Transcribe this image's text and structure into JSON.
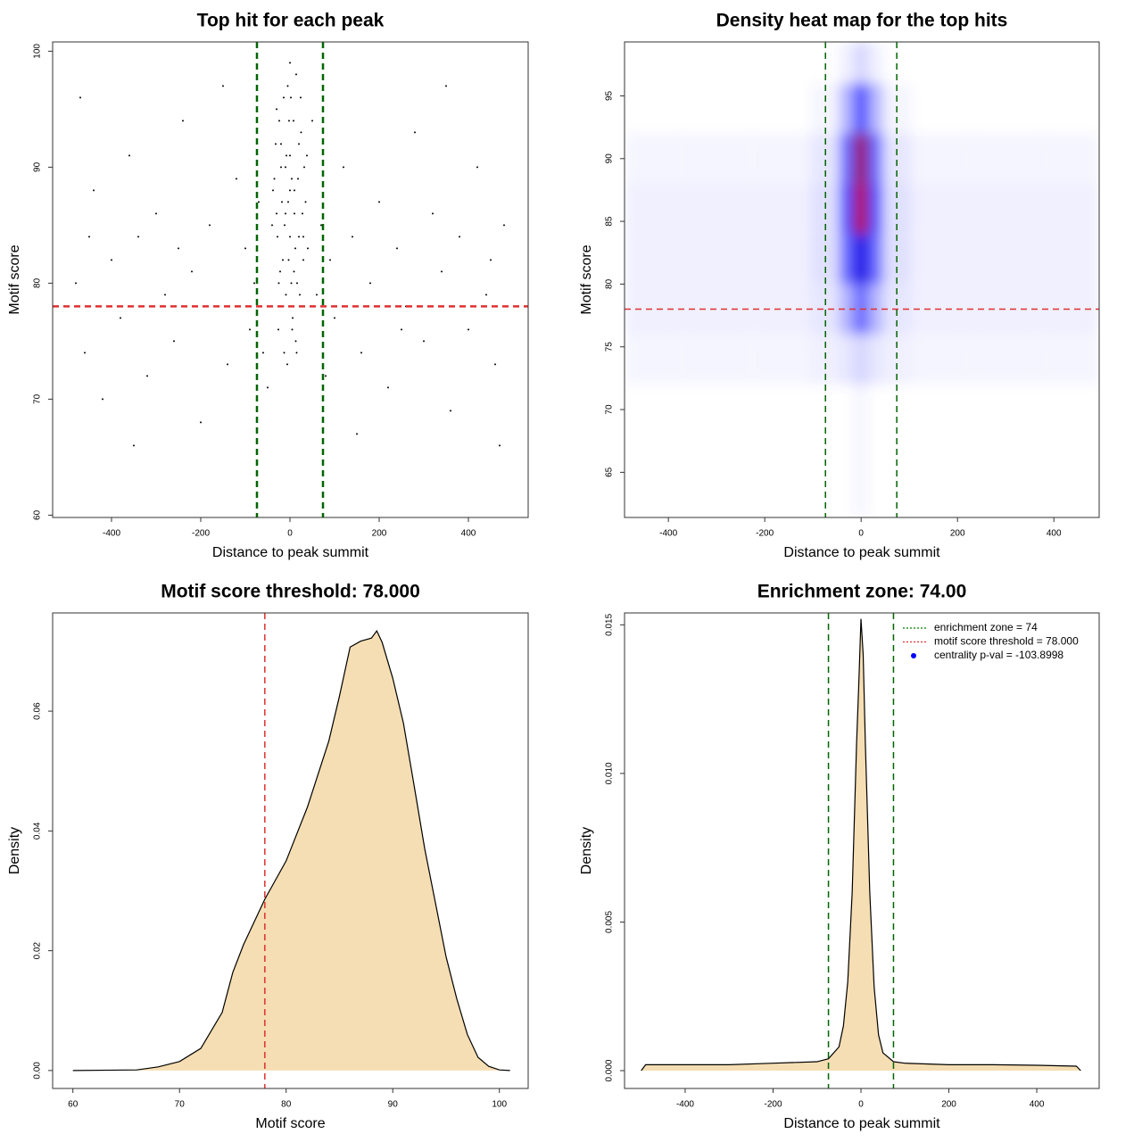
{
  "chart_data": [
    {
      "type": "scatter",
      "title": "Top hit for each peak",
      "xlabel": "Distance to peak summit",
      "ylabel": "Motif score",
      "xlim": [
        -532,
        534
      ],
      "ylim": [
        59.8,
        100.8
      ],
      "xticks": [
        -400,
        -200,
        0,
        200,
        400
      ],
      "yticks": [
        60,
        70,
        80,
        90,
        100
      ],
      "color": "#000000",
      "vlines": [
        {
          "value": -74,
          "color": "#006400"
        },
        {
          "value": 74,
          "color": "#006400"
        }
      ],
      "hlines": [
        {
          "value": 78,
          "color": "#e03030"
        }
      ],
      "x": [
        -30,
        -20,
        -10,
        0,
        10,
        20,
        30,
        -25,
        -15,
        5,
        15,
        -5,
        25,
        -35,
        35,
        0,
        -12,
        12,
        -22,
        22,
        -8,
        8,
        -18,
        18,
        -28,
        28,
        -3,
        3,
        -40,
        40,
        -6,
        6,
        -14,
        14,
        -32,
        32,
        0,
        -10,
        10,
        -20,
        20,
        -2,
        2,
        -26,
        26,
        -16,
        16,
        -38,
        38,
        -4,
        4,
        0,
        -9,
        9,
        -24,
        24,
        -13,
        13,
        -30,
        30,
        -480,
        -460,
        -440,
        -420,
        -400,
        -380,
        -360,
        -340,
        -320,
        -300,
        -280,
        -260,
        -240,
        -220,
        -200,
        -180,
        -160,
        -140,
        -120,
        -100,
        -90,
        -80,
        -70,
        -60,
        60,
        70,
        80,
        90,
        100,
        120,
        140,
        160,
        180,
        200,
        220,
        240,
        260,
        280,
        300,
        320,
        340,
        360,
        380,
        400,
        420,
        440,
        460,
        480,
        -470,
        470,
        -350,
        350,
        -150,
        150,
        -450,
        450,
        -250,
        250,
        -50,
        50
      ],
      "y": [
        95,
        92,
        90,
        88,
        86,
        84,
        82,
        80,
        78,
        76,
        74,
        97,
        93,
        89,
        87,
        99,
        85,
        83,
        81,
        79,
        91,
        94,
        87,
        89,
        84,
        86,
        82,
        80,
        85,
        83,
        73,
        77,
        96,
        98,
        92,
        90,
        84,
        86,
        88,
        90,
        92,
        94,
        96,
        76,
        78,
        82,
        80,
        88,
        91,
        87,
        89,
        91,
        79,
        81,
        94,
        96,
        74,
        75,
        86,
        84,
        80,
        74,
        88,
        70,
        82,
        77,
        91,
        84,
        72,
        86,
        79,
        75,
        94,
        81,
        68,
        85,
        78,
        73,
        89,
        83,
        76,
        80,
        87,
        74,
        79,
        85,
        72,
        82,
        77,
        90,
        84,
        74,
        80,
        87,
        71,
        83,
        78,
        93,
        75,
        86,
        81,
        69,
        84,
        76,
        90,
        79,
        73,
        85,
        96,
        66,
        66,
        97,
        97,
        67,
        84,
        82,
        83,
        76,
        71,
        94
      ]
    },
    {
      "type": "heatmap",
      "title": "Density heat map for the top hits",
      "xlabel": "Distance to peak summit",
      "ylabel": "Motif score",
      "xlim": [
        -491,
        494
      ],
      "ylim": [
        61.4,
        99.3
      ],
      "xticks": [
        -400,
        -200,
        0,
        200,
        400
      ],
      "yticks": [
        65,
        70,
        75,
        80,
        85,
        90,
        95
      ],
      "colors": [
        "#ffffff",
        "#0000ff",
        "#ff0000"
      ],
      "vlines": [
        {
          "value": -74,
          "color": "#006400"
        },
        {
          "value": 74,
          "color": "#006400"
        }
      ],
      "hlines": [
        {
          "value": 78,
          "color": "#e03030"
        }
      ],
      "x": [
        -450,
        -300,
        -150,
        -60,
        -30,
        0,
        30,
        60,
        150,
        300,
        450
      ],
      "y": [
        70,
        74,
        78,
        82,
        86,
        90,
        94,
        98
      ],
      "z": [
        [
          0,
          0,
          0,
          0,
          0,
          0.02,
          0,
          0,
          0,
          0,
          0
        ],
        [
          0.02,
          0.02,
          0.02,
          0.03,
          0.05,
          0.08,
          0.05,
          0.03,
          0.02,
          0.02,
          0.02
        ],
        [
          0.03,
          0.03,
          0.03,
          0.05,
          0.15,
          0.3,
          0.15,
          0.05,
          0.03,
          0.03,
          0.03
        ],
        [
          0.03,
          0.03,
          0.03,
          0.06,
          0.3,
          0.55,
          0.3,
          0.06,
          0.03,
          0.03,
          0.03
        ],
        [
          0.03,
          0.03,
          0.03,
          0.06,
          0.35,
          0.85,
          0.35,
          0.06,
          0.03,
          0.03,
          0.03
        ],
        [
          0.02,
          0.02,
          0.02,
          0.05,
          0.3,
          0.8,
          0.3,
          0.05,
          0.02,
          0.02,
          0.02
        ],
        [
          0,
          0,
          0,
          0.02,
          0.15,
          0.35,
          0.15,
          0.02,
          0,
          0,
          0
        ],
        [
          0,
          0,
          0,
          0,
          0.03,
          0.08,
          0.03,
          0,
          0,
          0,
          0
        ]
      ]
    },
    {
      "type": "area",
      "title": "Motif score threshold: 78.000",
      "xlabel": "Motif score",
      "ylabel": "Density",
      "xlim": [
        58.1,
        102.7
      ],
      "ylim": [
        -0.003,
        0.0764
      ],
      "xticks": [
        60,
        70,
        80,
        90,
        100
      ],
      "yticks": [
        {
          "value": 0,
          "label": "0.00"
        },
        {
          "value": 0.02,
          "label": "0.02"
        },
        {
          "value": 0.04,
          "label": "0.04"
        },
        {
          "value": 0.06,
          "label": "0.06"
        }
      ],
      "color": "#f5deb3",
      "vlines": [
        {
          "value": 78,
          "color": "#e03030"
        }
      ],
      "x": [
        60,
        66,
        68,
        70,
        72,
        74,
        75,
        76,
        78,
        80,
        82,
        84,
        85,
        86,
        87,
        88,
        88.5,
        89,
        90,
        91,
        92,
        93,
        94,
        95,
        96,
        97,
        98,
        99,
        100,
        101
      ],
      "values": [
        0,
        0.0001,
        0.0006,
        0.0015,
        0.0037,
        0.0097,
        0.0164,
        0.021,
        0.0286,
        0.035,
        0.044,
        0.055,
        0.0625,
        0.0707,
        0.0717,
        0.0722,
        0.0734,
        0.0715,
        0.0655,
        0.058,
        0.0476,
        0.037,
        0.028,
        0.019,
        0.012,
        0.006,
        0.0022,
        0.0007,
        0.0001,
        0
      ]
    },
    {
      "type": "area",
      "title": "Enrichment zone: 74.00",
      "xlabel": "Distance to peak summit",
      "ylabel": "Density",
      "xlim": [
        -538,
        542
      ],
      "ylim": [
        -0.0006,
        0.0154
      ],
      "xticks": [
        -400,
        -200,
        0,
        200,
        400
      ],
      "yticks": [
        {
          "value": 0,
          "label": "0.000"
        },
        {
          "value": 0.005,
          "label": "0.005"
        },
        {
          "value": 0.01,
          "label": "0.010"
        },
        {
          "value": 0.015,
          "label": "0.015"
        }
      ],
      "color": "#f5deb3",
      "vlines": [
        {
          "value": -74,
          "color": "#006400"
        },
        {
          "value": 74,
          "color": "#006400"
        }
      ],
      "x": [
        -500,
        -490,
        -400,
        -300,
        -200,
        -100,
        -74,
        -50,
        -40,
        -30,
        -20,
        -10,
        -5,
        0,
        5,
        10,
        20,
        30,
        40,
        50,
        74,
        100,
        200,
        300,
        400,
        490,
        500
      ],
      "values": [
        0,
        0.0002,
        0.0002,
        0.0002,
        0.00025,
        0.0003,
        0.0004,
        0.0008,
        0.0015,
        0.003,
        0.006,
        0.011,
        0.013,
        0.0152,
        0.014,
        0.011,
        0.006,
        0.0028,
        0.0012,
        0.0006,
        0.0003,
        0.00025,
        0.0002,
        0.0002,
        0.00018,
        0.00015,
        0
      ],
      "legend_position": "topright",
      "legend": [
        {
          "label": "enrichment zone = 74",
          "color": "#008000",
          "symbol": "line"
        },
        {
          "label": "motif score threshold = 78.000",
          "color": "#e03030",
          "symbol": "line"
        },
        {
          "label": "centrality p-val = -103.8998",
          "color": "#0000ff",
          "symbol": "point"
        }
      ]
    }
  ]
}
